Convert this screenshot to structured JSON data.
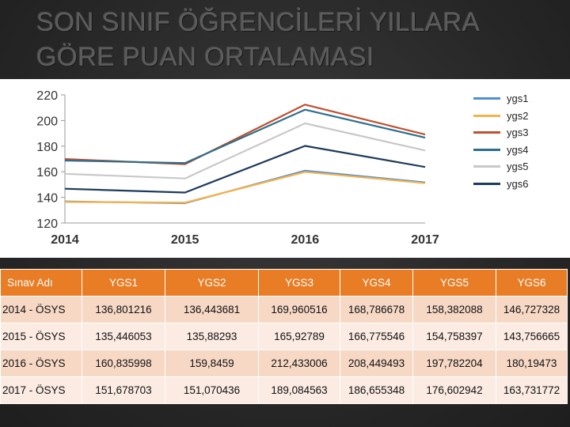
{
  "slide": {
    "title": "SON SINIF ÖĞRENCİLERİ YILLARA GÖRE PUAN ORTALAMASI"
  },
  "chart_data": {
    "type": "line",
    "title": "",
    "xlabel": "",
    "ylabel": "",
    "ylim": [
      120,
      220
    ],
    "yticks": [
      "120",
      "140",
      "160",
      "180",
      "200",
      "220"
    ],
    "x": [
      "2014",
      "2015",
      "2016",
      "2017"
    ],
    "legend_position": "top-right",
    "series": [
      {
        "name": "ygs1",
        "color": "#4f8fd4",
        "values": [
          136.801216,
          135.446053,
          160.835998,
          151.678703
        ]
      },
      {
        "name": "ygs2",
        "color": "#f3b24b",
        "values": [
          136.443681,
          135.88293,
          159.8459,
          151.070436
        ]
      },
      {
        "name": "ygs3",
        "color": "#c0502e",
        "values": [
          169.960516,
          165.92789,
          212.433006,
          189.084563
        ]
      },
      {
        "name": "ygs4",
        "color": "#2d6e8e",
        "values": [
          168.786678,
          166.775546,
          208.449493,
          186.655348
        ]
      },
      {
        "name": "ygs5",
        "color": "#c8c8c8",
        "values": [
          158.382088,
          154.758397,
          197.782204,
          176.602942
        ]
      },
      {
        "name": "ygs6",
        "color": "#1f3a5a",
        "values": [
          146.727328,
          143.756665,
          180.19473,
          163.731772
        ]
      }
    ]
  },
  "table": {
    "headers": [
      "Sınav Adı",
      "YGS1",
      "YGS2",
      "YGS3",
      "YGS4",
      "YGS5",
      "YGS6"
    ],
    "rows": [
      [
        "2014 - ÖSYS",
        "136,801216",
        "136,443681",
        "169,960516",
        "168,786678",
        "158,382088",
        "146,727328"
      ],
      [
        "2015 - ÖSYS",
        "135,446053",
        "135,88293",
        "165,92789",
        "166,775546",
        "154,758397",
        "143,756665"
      ],
      [
        "2016 - ÖSYS",
        "160,835998",
        "159,8459",
        "212,433006",
        "208,449493",
        "197,782204",
        "180,19473"
      ],
      [
        "2017 - ÖSYS",
        "151,678703",
        "151,070436",
        "189,084563",
        "186,655348",
        "176,602942",
        "163,731772"
      ]
    ]
  }
}
